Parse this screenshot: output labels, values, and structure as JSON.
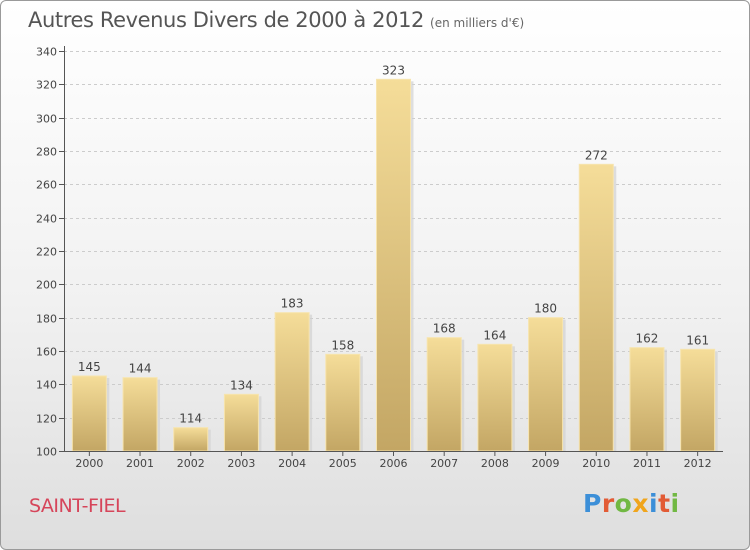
{
  "title": "Autres Revenus Divers de 2000 à 2012",
  "subtitle": "(en milliers d'€)",
  "location": "SAINT-FIEL",
  "logo": {
    "text": "Proxiti",
    "letters": [
      {
        "char": "P",
        "color": "#3c8fd8"
      },
      {
        "char": "r",
        "color": "#e25b35"
      },
      {
        "char": "o",
        "color": "#71b843"
      },
      {
        "char": "x",
        "color": "#f0a51c"
      },
      {
        "char": "i",
        "color": "#3c8fd8"
      },
      {
        "char": "t",
        "color": "#e25b35"
      },
      {
        "char": "i",
        "color": "#71b843"
      }
    ]
  },
  "chart_data": {
    "type": "bar",
    "categories": [
      "2000",
      "2001",
      "2002",
      "2003",
      "2004",
      "2005",
      "2006",
      "2007",
      "2008",
      "2009",
      "2010",
      "2011",
      "2012"
    ],
    "values": [
      145,
      144,
      114,
      134,
      183,
      158,
      323,
      168,
      164,
      180,
      272,
      162,
      161
    ],
    "ylim": [
      100,
      340
    ],
    "yticks": [
      100,
      120,
      140,
      160,
      180,
      200,
      220,
      240,
      260,
      280,
      300,
      320,
      340
    ],
    "grid": true,
    "data_labels": true,
    "colors": {
      "bar_light": "#f5dd99",
      "bar_dark": "#c3a664",
      "grid": "#cccccc",
      "axis": "#555555",
      "text": "#444444"
    }
  }
}
